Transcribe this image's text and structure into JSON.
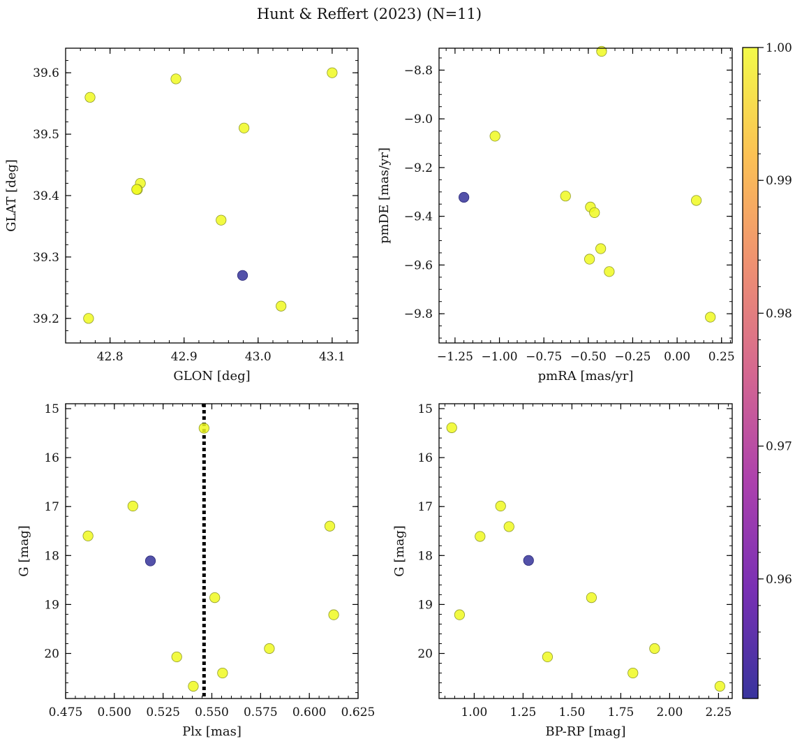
{
  "figure_title": "Hunt & Reffert (2023) (N=11)",
  "colors": {
    "member": "#f0f921",
    "outlier": "#35329a",
    "edge": "#8f9a2a",
    "refline": "#000000"
  },
  "colorbar": {
    "label_ticks": [
      "0.96",
      "0.97",
      "0.98",
      "0.99",
      "1.00"
    ],
    "tick_values": [
      0.96,
      0.97,
      0.98,
      0.99,
      1.0
    ],
    "range": [
      0.951,
      1.0
    ],
    "stops": [
      "#0d0887",
      "#5b02a3",
      "#9a179b",
      "#cb4678",
      "#eb7852",
      "#fbb32f",
      "#f0f921"
    ]
  },
  "chart_data": [
    {
      "type": "scatter",
      "id": "glon-glat",
      "xlabel": "GLON [deg]",
      "ylabel": "GLAT [deg]",
      "xlim": [
        42.74,
        43.135
      ],
      "ylim": [
        39.16,
        39.64
      ],
      "invert_y": false,
      "xticks": [
        42.8,
        42.9,
        43.0,
        43.1
      ],
      "xtick_labels": [
        "42.8",
        "42.9",
        "43.0",
        "43.1"
      ],
      "xminor": 0.02,
      "yticks": [
        39.2,
        39.3,
        39.4,
        39.5,
        39.6
      ],
      "ytick_labels": [
        "39.2",
        "39.3",
        "39.4",
        "39.5",
        "39.6"
      ],
      "yminor": 0.02,
      "points": [
        {
          "x": 42.773,
          "y": 39.56,
          "p": 1.0
        },
        {
          "x": 42.889,
          "y": 39.59,
          "p": 1.0
        },
        {
          "x": 43.1,
          "y": 39.6,
          "p": 1.0
        },
        {
          "x": 42.981,
          "y": 39.51,
          "p": 1.0
        },
        {
          "x": 42.841,
          "y": 39.42,
          "p": 1.0
        },
        {
          "x": 42.837,
          "y": 39.41,
          "p": 1.0
        },
        {
          "x": 42.95,
          "y": 39.36,
          "p": 1.0
        },
        {
          "x": 42.979,
          "y": 39.27,
          "p": 0.951
        },
        {
          "x": 43.031,
          "y": 39.22,
          "p": 1.0
        },
        {
          "x": 42.771,
          "y": 39.2,
          "p": 1.0
        },
        {
          "x": 42.836,
          "y": 39.41,
          "p": 1.0
        }
      ]
    },
    {
      "type": "scatter",
      "id": "pmra-pmde",
      "xlabel": "pmRA [mas/yr]",
      "ylabel": "pmDE [mas/yr]",
      "xlim": [
        -1.34,
        0.31
      ],
      "ylim": [
        -9.92,
        -8.71
      ],
      "invert_y": false,
      "xticks": [
        -1.25,
        -1.0,
        -0.75,
        -0.5,
        -0.25,
        0.0,
        0.25
      ],
      "xtick_labels": [
        "−1.25",
        "−1.00",
        "−0.75",
        "−0.50",
        "−0.25",
        "0.00",
        "0.25"
      ],
      "xminor": 0.05,
      "yticks": [
        -9.8,
        -9.6,
        -9.4,
        -9.2,
        -9.0,
        -8.8
      ],
      "ytick_labels": [
        "−9.8",
        "−9.6",
        "−9.4",
        "−9.2",
        "−9.0",
        "−8.8"
      ],
      "yminor": 0.05,
      "points": [
        {
          "x": -0.425,
          "y": -8.723,
          "p": 1.0
        },
        {
          "x": -1.025,
          "y": -9.071,
          "p": 1.0
        },
        {
          "x": -0.628,
          "y": -9.317,
          "p": 1.0
        },
        {
          "x": 0.108,
          "y": -9.335,
          "p": 1.0
        },
        {
          "x": -0.488,
          "y": -9.362,
          "p": 1.0
        },
        {
          "x": -0.465,
          "y": -9.385,
          "p": 1.0
        },
        {
          "x": -0.43,
          "y": -9.533,
          "p": 1.0
        },
        {
          "x": -0.493,
          "y": -9.576,
          "p": 1.0
        },
        {
          "x": -0.382,
          "y": -9.627,
          "p": 1.0
        },
        {
          "x": 0.187,
          "y": -9.814,
          "p": 1.0
        },
        {
          "x": -1.2,
          "y": -9.322,
          "p": 0.951
        }
      ]
    },
    {
      "type": "scatter",
      "id": "plx-g",
      "xlabel": "Plx [mas]",
      "ylabel": "G [mag]",
      "xlim": [
        0.475,
        0.625
      ],
      "ylim": [
        14.9,
        20.92
      ],
      "invert_y": true,
      "xticks": [
        0.475,
        0.5,
        0.525,
        0.55,
        0.575,
        0.6,
        0.625
      ],
      "xtick_labels": [
        "0.475",
        "0.500",
        "0.525",
        "0.550",
        "0.575",
        "0.600",
        "0.625"
      ],
      "xminor": 0.005,
      "yticks": [
        15,
        16,
        17,
        18,
        19,
        20
      ],
      "ytick_labels": [
        "15",
        "16",
        "17",
        "18",
        "19",
        "20"
      ],
      "yminor": 0.2,
      "vline": 0.546,
      "points": [
        {
          "x": 0.546,
          "y": 15.4,
          "p": 1.0
        },
        {
          "x": 0.5095,
          "y": 16.99,
          "p": 1.0
        },
        {
          "x": 0.6105,
          "y": 17.4,
          "p": 1.0
        },
        {
          "x": 0.4865,
          "y": 17.6,
          "p": 1.0
        },
        {
          "x": 0.5185,
          "y": 18.11,
          "p": 0.951
        },
        {
          "x": 0.5515,
          "y": 18.86,
          "p": 1.0
        },
        {
          "x": 0.6125,
          "y": 19.21,
          "p": 1.0
        },
        {
          "x": 0.5795,
          "y": 19.9,
          "p": 1.0
        },
        {
          "x": 0.532,
          "y": 20.07,
          "p": 1.0
        },
        {
          "x": 0.5555,
          "y": 20.4,
          "p": 1.0
        },
        {
          "x": 0.5405,
          "y": 20.67,
          "p": 1.0
        }
      ]
    },
    {
      "type": "scatter",
      "id": "bprp-g",
      "xlabel": "BP-RP [mag]",
      "ylabel": "G [mag]",
      "xlim": [
        0.82,
        2.32
      ],
      "ylim": [
        14.9,
        20.92
      ],
      "invert_y": true,
      "xticks": [
        1.0,
        1.25,
        1.5,
        1.75,
        2.0,
        2.25
      ],
      "xtick_labels": [
        "1.00",
        "1.25",
        "1.50",
        "1.75",
        "2.00",
        "2.25"
      ],
      "xminor": 0.05,
      "yticks": [
        15,
        16,
        17,
        18,
        19,
        20
      ],
      "ytick_labels": [
        "15",
        "16",
        "17",
        "18",
        "19",
        "20"
      ],
      "yminor": 0.2,
      "points": [
        {
          "x": 0.885,
          "y": 15.39,
          "p": 1.0
        },
        {
          "x": 1.135,
          "y": 16.99,
          "p": 1.0
        },
        {
          "x": 1.178,
          "y": 17.41,
          "p": 1.0
        },
        {
          "x": 1.03,
          "y": 17.61,
          "p": 1.0
        },
        {
          "x": 1.278,
          "y": 18.1,
          "p": 0.951
        },
        {
          "x": 1.6,
          "y": 18.86,
          "p": 1.0
        },
        {
          "x": 0.925,
          "y": 19.21,
          "p": 1.0
        },
        {
          "x": 1.923,
          "y": 19.9,
          "p": 1.0
        },
        {
          "x": 1.375,
          "y": 20.07,
          "p": 1.0
        },
        {
          "x": 1.812,
          "y": 20.4,
          "p": 1.0
        },
        {
          "x": 2.257,
          "y": 20.67,
          "p": 1.0
        }
      ]
    }
  ]
}
